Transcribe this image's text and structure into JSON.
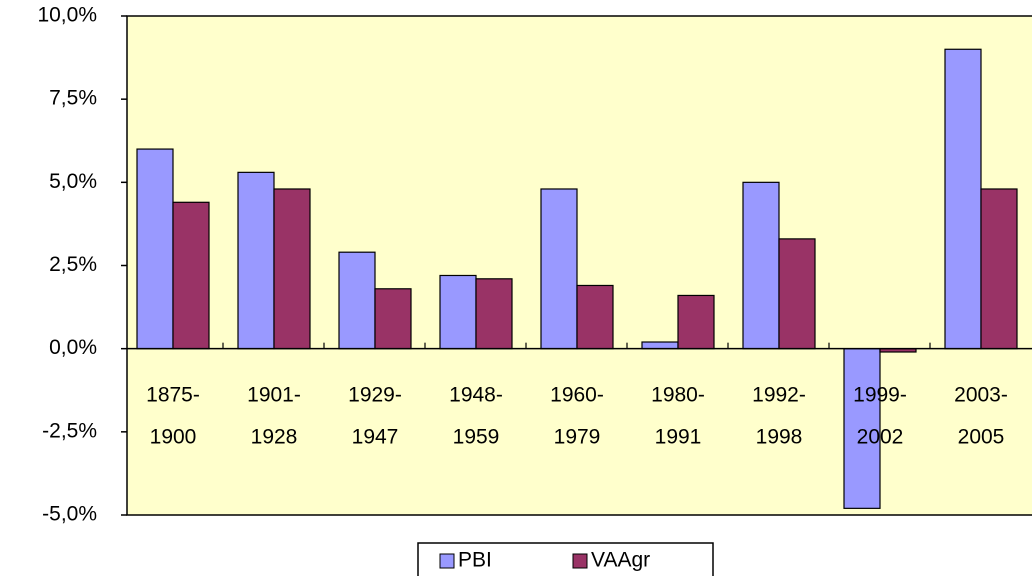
{
  "chart_data": {
    "type": "bar",
    "categories": [
      [
        "1875-",
        "1900"
      ],
      [
        "1901-",
        "1928"
      ],
      [
        "1929-",
        "1947"
      ],
      [
        "1948-",
        "1959"
      ],
      [
        "1960-",
        "1979"
      ],
      [
        "1980-",
        "1991"
      ],
      [
        "1992-",
        "1998"
      ],
      [
        "1999-",
        "2002"
      ],
      [
        "2003-",
        "2005"
      ]
    ],
    "series": [
      {
        "name": "PBI",
        "color": "#9999ff",
        "values": [
          6.0,
          5.3,
          2.9,
          2.2,
          4.8,
          0.2,
          5.0,
          -4.8,
          9.0
        ]
      },
      {
        "name": "VAAgr",
        "color": "#993366",
        "values": [
          4.4,
          4.8,
          1.8,
          2.1,
          1.9,
          1.6,
          3.3,
          -0.1,
          4.8
        ]
      }
    ],
    "ylim": [
      -5,
      10
    ],
    "yticks": [
      {
        "value": -5,
        "label": "-5,0%"
      },
      {
        "value": -2.5,
        "label": "-2,5%"
      },
      {
        "value": 0,
        "label": "0,0%"
      },
      {
        "value": 2.5,
        "label": "2,5%"
      },
      {
        "value": 5,
        "label": "5,0%"
      },
      {
        "value": 7.5,
        "label": "7,5%"
      },
      {
        "value": 10,
        "label": "10,0%"
      }
    ],
    "plot_background": "#ffffcc",
    "legend": "bottom"
  }
}
